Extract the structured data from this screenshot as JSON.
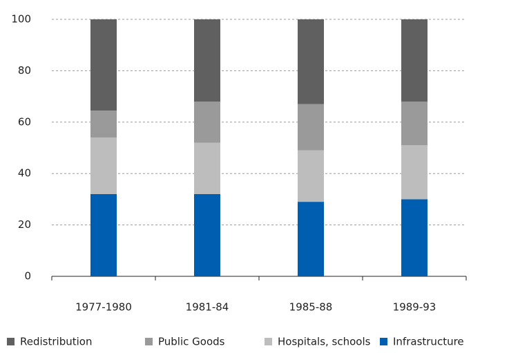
{
  "chart_data": {
    "type": "stacked_bar",
    "categories": [
      "1977-1980",
      "1981-84",
      "1985-88",
      "1989-93"
    ],
    "series": [
      {
        "name": "Redistribution",
        "color": "#606060",
        "values": [
          35.5,
          32,
          33,
          32
        ]
      },
      {
        "name": "Public Goods",
        "color": "#9a9a9a",
        "values": [
          10.5,
          16,
          18,
          17
        ]
      },
      {
        "name": "Hospitals, schools",
        "color": "#bdbdbd",
        "values": [
          22,
          20,
          20,
          21
        ]
      },
      {
        "name": "Infrastructure",
        "color": "#005eb0",
        "values": [
          32,
          32,
          29,
          30
        ]
      }
    ],
    "ylim": [
      0,
      100
    ],
    "yticks": [
      0,
      20,
      40,
      60,
      80,
      100
    ],
    "grid": true
  }
}
